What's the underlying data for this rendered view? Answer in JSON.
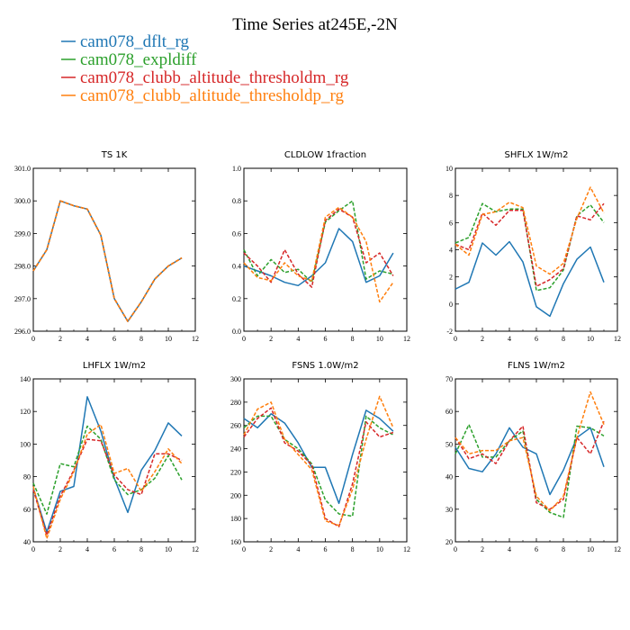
{
  "figure_title": "Time Series at245E,-2N",
  "legend": [
    {
      "name": "cam078_dflt_rg",
      "color": "#1f77b4",
      "dash": "solid"
    },
    {
      "name": "cam078_expldiff",
      "color": "#2ca02c",
      "dash": "dashed"
    },
    {
      "name": "cam078_clubb_altitude_thresholdm_rg",
      "color": "#d62728",
      "dash": "dashed"
    },
    {
      "name": "cam078_clubb_altitude_thresholdp_rg",
      "color": "#ff7f0e",
      "dash": "dashed"
    }
  ],
  "chart_data": [
    {
      "type": "line",
      "title": "TS   1K",
      "x": [
        0,
        1,
        2,
        3,
        4,
        5,
        6,
        7,
        8,
        9,
        10,
        11
      ],
      "xlim": [
        0,
        12
      ],
      "xticks": [
        0,
        2,
        4,
        6,
        8,
        10,
        12
      ],
      "ylim": [
        296,
        301
      ],
      "yticks": [
        296,
        297,
        298,
        299,
        300,
        301
      ],
      "ytick_labels": [
        "296.0",
        "297.0",
        "298.0",
        "299.0",
        "300.0",
        "301.0"
      ],
      "series": [
        {
          "name": "cam078_dflt_rg",
          "values": [
            297.85,
            298.5,
            300.0,
            299.85,
            299.75,
            298.95,
            297.0,
            296.3,
            296.9,
            297.6,
            298.0,
            298.25
          ]
        },
        {
          "name": "cam078_expldiff",
          "values": [
            297.85,
            298.5,
            300.0,
            299.85,
            299.75,
            298.95,
            297.0,
            296.3,
            296.9,
            297.6,
            298.0,
            298.25
          ]
        },
        {
          "name": "cam078_clubb_altitude_thresholdm_rg",
          "values": [
            297.85,
            298.5,
            300.0,
            299.85,
            299.75,
            298.95,
            297.0,
            296.3,
            296.9,
            297.6,
            298.0,
            298.25
          ]
        },
        {
          "name": "cam078_clubb_altitude_thresholdp_rg",
          "values": [
            297.85,
            298.5,
            300.0,
            299.85,
            299.75,
            298.95,
            297.0,
            296.3,
            296.9,
            297.6,
            298.0,
            298.25
          ]
        }
      ]
    },
    {
      "type": "line",
      "title": "CLDLOW   1fraction",
      "x": [
        0,
        1,
        2,
        3,
        4,
        5,
        6,
        7,
        8,
        9,
        10,
        11
      ],
      "xlim": [
        0,
        12
      ],
      "xticks": [
        0,
        2,
        4,
        6,
        8,
        10,
        12
      ],
      "ylim": [
        0,
        1
      ],
      "yticks": [
        0,
        0.2,
        0.4,
        0.6,
        0.8,
        1.0
      ],
      "ytick_labels": [
        "0.0",
        "0.2",
        "0.4",
        "0.6",
        "0.8",
        "1.0"
      ],
      "series": [
        {
          "name": "cam078_dflt_rg",
          "values": [
            0.4,
            0.37,
            0.34,
            0.3,
            0.28,
            0.34,
            0.42,
            0.63,
            0.55,
            0.3,
            0.34,
            0.48
          ]
        },
        {
          "name": "cam078_expldiff",
          "values": [
            0.5,
            0.34,
            0.44,
            0.36,
            0.38,
            0.3,
            0.67,
            0.74,
            0.8,
            0.32,
            0.37,
            0.35
          ]
        },
        {
          "name": "cam078_clubb_altitude_thresholdm_rg",
          "values": [
            0.48,
            0.4,
            0.3,
            0.5,
            0.35,
            0.27,
            0.68,
            0.75,
            0.7,
            0.42,
            0.48,
            0.34
          ]
        },
        {
          "name": "cam078_clubb_altitude_thresholdp_rg",
          "values": [
            0.42,
            0.33,
            0.31,
            0.42,
            0.34,
            0.31,
            0.7,
            0.76,
            0.7,
            0.55,
            0.18,
            0.3
          ]
        }
      ]
    },
    {
      "type": "line",
      "title": "SHFLX   1W/m2",
      "x": [
        0,
        1,
        2,
        3,
        4,
        5,
        6,
        7,
        8,
        9,
        10,
        11
      ],
      "xlim": [
        0,
        12
      ],
      "xticks": [
        0,
        2,
        4,
        6,
        8,
        10,
        12
      ],
      "ylim": [
        -2,
        10
      ],
      "yticks": [
        -2,
        0,
        2,
        4,
        6,
        8,
        10
      ],
      "ytick_labels": [
        "-2",
        "0",
        "2",
        "4",
        "6",
        "8",
        "10"
      ],
      "series": [
        {
          "name": "cam078_dflt_rg",
          "values": [
            1.1,
            1.6,
            4.5,
            3.6,
            4.6,
            3.1,
            -0.2,
            -0.9,
            1.5,
            3.3,
            4.2,
            1.6
          ]
        },
        {
          "name": "cam078_expldiff",
          "values": [
            4.5,
            4.9,
            7.4,
            6.8,
            7.0,
            7.0,
            1.0,
            1.2,
            2.5,
            6.5,
            7.3,
            6.0
          ]
        },
        {
          "name": "cam078_clubb_altitude_thresholdm_rg",
          "values": [
            4.4,
            4.0,
            6.7,
            5.8,
            6.9,
            6.9,
            1.3,
            1.8,
            2.6,
            6.5,
            6.2,
            7.4
          ]
        },
        {
          "name": "cam078_clubb_altitude_thresholdp_rg",
          "values": [
            4.4,
            3.6,
            6.6,
            6.8,
            7.5,
            7.1,
            2.8,
            2.2,
            3.0,
            6.3,
            8.6,
            6.7
          ]
        }
      ]
    },
    {
      "type": "line",
      "title": "LHFLX   1W/m2",
      "x": [
        0,
        1,
        2,
        3,
        4,
        5,
        6,
        7,
        8,
        9,
        10,
        11
      ],
      "xlim": [
        0,
        12
      ],
      "xticks": [
        0,
        2,
        4,
        6,
        8,
        10,
        12
      ],
      "ylim": [
        40,
        140
      ],
      "yticks": [
        40,
        60,
        80,
        100,
        120,
        140
      ],
      "ytick_labels": [
        "40",
        "60",
        "80",
        "100",
        "120",
        "140"
      ],
      "series": [
        {
          "name": "cam078_dflt_rg",
          "values": [
            73,
            46,
            71,
            74,
            129,
            108,
            79,
            58,
            84,
            96,
            113,
            105
          ]
        },
        {
          "name": "cam078_expldiff",
          "values": [
            76,
            57,
            88,
            86,
            111,
            103,
            78,
            69,
            72,
            79,
            93,
            78
          ]
        },
        {
          "name": "cam078_clubb_altitude_thresholdm_rg",
          "values": [
            72,
            44,
            68,
            84,
            103,
            102,
            81,
            72,
            69,
            94,
            94,
            90
          ]
        },
        {
          "name": "cam078_clubb_altitude_thresholdp_rg",
          "values": [
            74,
            42,
            66,
            83,
            106,
            112,
            82,
            85,
            71,
            83,
            97,
            88
          ]
        }
      ]
    },
    {
      "type": "line",
      "title": "FSNS   1.0W/m2",
      "x": [
        0,
        1,
        2,
        3,
        4,
        5,
        6,
        7,
        8,
        9,
        10,
        11
      ],
      "xlim": [
        0,
        12
      ],
      "xticks": [
        0,
        2,
        4,
        6,
        8,
        10,
        12
      ],
      "ylim": [
        160,
        300
      ],
      "yticks": [
        160,
        180,
        200,
        220,
        240,
        260,
        280,
        300
      ],
      "ytick_labels": [
        "160",
        "180",
        "200",
        "220",
        "240",
        "260",
        "280",
        "300"
      ],
      "series": [
        {
          "name": "cam078_dflt_rg",
          "values": [
            266,
            258,
            270,
            262,
            245,
            224,
            224,
            193,
            235,
            273,
            266,
            255
          ]
        },
        {
          "name": "cam078_expldiff",
          "values": [
            258,
            268,
            268,
            248,
            240,
            227,
            196,
            184,
            182,
            268,
            258,
            252
          ]
        },
        {
          "name": "cam078_clubb_altitude_thresholdm_rg",
          "values": [
            250,
            266,
            275,
            245,
            238,
            226,
            180,
            173,
            210,
            263,
            250,
            254
          ]
        },
        {
          "name": "cam078_clubb_altitude_thresholdp_rg",
          "values": [
            252,
            274,
            280,
            248,
            235,
            222,
            178,
            174,
            205,
            248,
            285,
            258
          ]
        }
      ]
    },
    {
      "type": "line",
      "title": "FLNS   1W/m2",
      "x": [
        0,
        1,
        2,
        3,
        4,
        5,
        6,
        7,
        8,
        9,
        10,
        11
      ],
      "xlim": [
        0,
        12
      ],
      "xticks": [
        0,
        2,
        4,
        6,
        8,
        10,
        12
      ],
      "ylim": [
        20,
        70
      ],
      "yticks": [
        20,
        30,
        40,
        50,
        60,
        70
      ],
      "ytick_labels": [
        "20",
        "30",
        "40",
        "50",
        "60",
        "70"
      ],
      "series": [
        {
          "name": "cam078_dflt_rg",
          "values": [
            49,
            42.5,
            41.5,
            47,
            55,
            49,
            47,
            34.5,
            42,
            52,
            55,
            43
          ]
        },
        {
          "name": "cam078_expldiff",
          "values": [
            47,
            56,
            46,
            46,
            51,
            54,
            33,
            29,
            27.5,
            55.5,
            55,
            52.5
          ]
        },
        {
          "name": "cam078_clubb_altitude_thresholdm_rg",
          "values": [
            52,
            45.5,
            47,
            44,
            51,
            55.5,
            32,
            30,
            33,
            52,
            47,
            57
          ]
        },
        {
          "name": "cam078_clubb_altitude_thresholdp_rg",
          "values": [
            52,
            47,
            48,
            48,
            51,
            52,
            34,
            29.5,
            34,
            52,
            66,
            56
          ]
        }
      ]
    }
  ]
}
